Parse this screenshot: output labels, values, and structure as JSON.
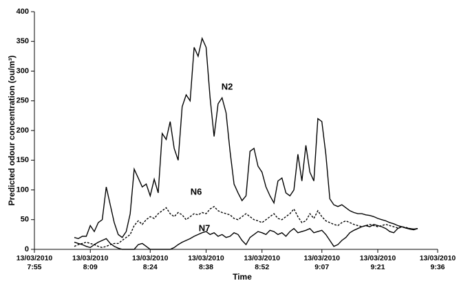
{
  "chart_data": {
    "type": "line",
    "y_label": "Predicted odour concentration (ou/m³)",
    "x_label": "Time",
    "xlim": [
      "7:55",
      "9:36"
    ],
    "xticks": [
      {
        "value": "7:55",
        "label": "13/03/2010 7:55"
      },
      {
        "value": "8:09",
        "label": "13/03/2010 8:09"
      },
      {
        "value": "8:24",
        "label": "13/03/2010 8:24"
      },
      {
        "value": "8:38",
        "label": "13/03/2010 8:38"
      },
      {
        "value": "8:52",
        "label": "13/03/2010 8:52"
      },
      {
        "value": "9:07",
        "label": "13/03/2010 9:07"
      },
      {
        "value": "9:21",
        "label": "13/03/2010 9:21"
      },
      {
        "value": "9:36",
        "label": "13/03/2010 9:36"
      }
    ],
    "ylim": [
      0,
      400
    ],
    "yticks": [
      0,
      50,
      100,
      150,
      200,
      250,
      300,
      350,
      400
    ],
    "grid": false,
    "x": [
      "8:05",
      "8:06",
      "8:07",
      "8:08",
      "8:09",
      "8:10",
      "8:11",
      "8:12",
      "8:13",
      "8:14",
      "8:15",
      "8:16",
      "8:17",
      "8:18",
      "8:19",
      "8:20",
      "8:21",
      "8:22",
      "8:23",
      "8:24",
      "8:25",
      "8:26",
      "8:27",
      "8:28",
      "8:29",
      "8:30",
      "8:31",
      "8:32",
      "8:33",
      "8:34",
      "8:35",
      "8:36",
      "8:37",
      "8:38",
      "8:39",
      "8:40",
      "8:41",
      "8:42",
      "8:43",
      "8:44",
      "8:45",
      "8:46",
      "8:47",
      "8:48",
      "8:49",
      "8:50",
      "8:51",
      "8:52",
      "8:53",
      "8:54",
      "8:55",
      "8:56",
      "8:57",
      "8:58",
      "8:59",
      "9:00",
      "9:01",
      "9:02",
      "9:03",
      "9:04",
      "9:05",
      "9:06",
      "9:07",
      "9:08",
      "9:09",
      "9:10",
      "9:11",
      "9:12",
      "9:13",
      "9:14",
      "9:15",
      "9:16",
      "9:17",
      "9:18",
      "9:19",
      "9:20",
      "9:21",
      "9:22",
      "9:23",
      "9:24",
      "9:25",
      "9:26",
      "9:27",
      "9:28",
      "9:29",
      "9:30",
      "9:31"
    ],
    "series": [
      {
        "name": "N2",
        "color": "#000000",
        "dashed": false,
        "values": [
          20,
          18,
          22,
          22,
          40,
          30,
          45,
          50,
          105,
          75,
          45,
          25,
          20,
          30,
          60,
          135,
          120,
          105,
          110,
          90,
          118,
          95,
          195,
          185,
          215,
          170,
          150,
          240,
          260,
          250,
          340,
          325,
          355,
          340,
          255,
          190,
          245,
          255,
          230,
          165,
          110,
          95,
          82,
          90,
          165,
          170,
          140,
          130,
          105,
          90,
          78,
          115,
          120,
          95,
          90,
          100,
          160,
          115,
          175,
          130,
          115,
          220,
          215,
          160,
          85,
          75,
          72,
          75,
          70,
          65,
          62,
          60,
          60,
          58,
          57,
          55,
          52,
          50,
          48,
          45,
          43,
          40,
          38,
          36,
          35,
          34,
          35
        ]
      },
      {
        "name": "N6",
        "color": "#000000",
        "dashed": true,
        "values": [
          5,
          8,
          10,
          12,
          10,
          8,
          5,
          3,
          5,
          8,
          10,
          10,
          15,
          20,
          25,
          40,
          48,
          42,
          50,
          55,
          52,
          60,
          65,
          70,
          60,
          55,
          62,
          58,
          50,
          55,
          60,
          58,
          62,
          60,
          68,
          72,
          65,
          62,
          60,
          58,
          52,
          50,
          55,
          60,
          55,
          50,
          48,
          45,
          50,
          55,
          60,
          52,
          50,
          55,
          60,
          68,
          55,
          45,
          48,
          60,
          52,
          65,
          55,
          48,
          45,
          42,
          40,
          45,
          48,
          45,
          42,
          40,
          38,
          40,
          42,
          40,
          38,
          40,
          42,
          40,
          38,
          36,
          38,
          37,
          35,
          34,
          35
        ]
      },
      {
        "name": "N7",
        "color": "#000000",
        "dashed": false,
        "values": [
          12,
          10,
          8,
          5,
          3,
          8,
          12,
          15,
          18,
          10,
          5,
          2,
          0,
          0,
          0,
          0,
          8,
          10,
          5,
          0,
          0,
          0,
          0,
          0,
          0,
          3,
          8,
          12,
          15,
          18,
          22,
          25,
          28,
          30,
          25,
          28,
          22,
          25,
          20,
          22,
          28,
          25,
          15,
          8,
          20,
          25,
          30,
          28,
          25,
          32,
          30,
          25,
          28,
          22,
          30,
          35,
          28,
          30,
          32,
          35,
          28,
          30,
          32,
          25,
          15,
          5,
          8,
          15,
          20,
          28,
          32,
          35,
          38,
          40,
          38,
          42,
          40,
          38,
          35,
          30,
          28,
          35,
          38,
          36,
          34,
          33,
          35
        ]
      }
    ]
  }
}
